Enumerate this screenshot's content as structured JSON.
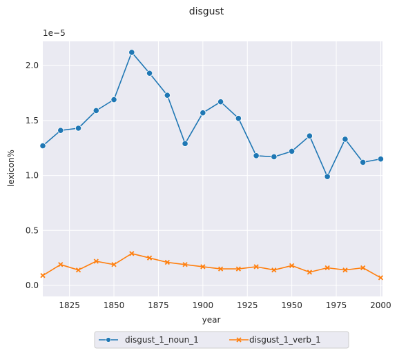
{
  "chart_data": {
    "type": "line",
    "title": "disgust",
    "xlabel": "year",
    "ylabel": "lexicon%",
    "y_scale_label": "1e−5",
    "xlim": [
      1810,
      2001
    ],
    "ylim": [
      -0.1,
      2.22
    ],
    "x_ticks": [
      1825,
      1850,
      1875,
      1900,
      1925,
      1950,
      1975,
      2000
    ],
    "x_tick_labels": [
      "1825",
      "1850",
      "1875",
      "1900",
      "1925",
      "1950",
      "1975",
      "2000"
    ],
    "y_ticks": [
      0.0,
      0.5,
      1.0,
      1.5,
      2.0
    ],
    "y_tick_labels": [
      "0.0",
      "0.5",
      "1.0",
      "1.5",
      "2.0"
    ],
    "grid": true,
    "legend_position": "bottom-center",
    "x": [
      1810,
      1820,
      1830,
      1840,
      1850,
      1860,
      1870,
      1880,
      1890,
      1900,
      1910,
      1920,
      1930,
      1940,
      1950,
      1960,
      1970,
      1980,
      1990,
      2000
    ],
    "series": [
      {
        "name": "disgust_1_noun_1",
        "color": "#1f77b4",
        "marker": "circle",
        "values": [
          1.27,
          1.41,
          1.43,
          1.59,
          1.69,
          2.12,
          1.93,
          1.73,
          1.29,
          1.57,
          1.67,
          1.52,
          1.18,
          1.17,
          1.22,
          1.36,
          0.99,
          1.33,
          1.12,
          1.15
        ]
      },
      {
        "name": "disgust_1_verb_1",
        "color": "#ff7f0e",
        "marker": "x",
        "values": [
          0.09,
          0.19,
          0.14,
          0.22,
          0.19,
          0.29,
          0.25,
          0.21,
          0.19,
          0.17,
          0.15,
          0.15,
          0.17,
          0.14,
          0.18,
          0.12,
          0.16,
          0.14,
          0.16,
          0.07
        ]
      }
    ]
  }
}
